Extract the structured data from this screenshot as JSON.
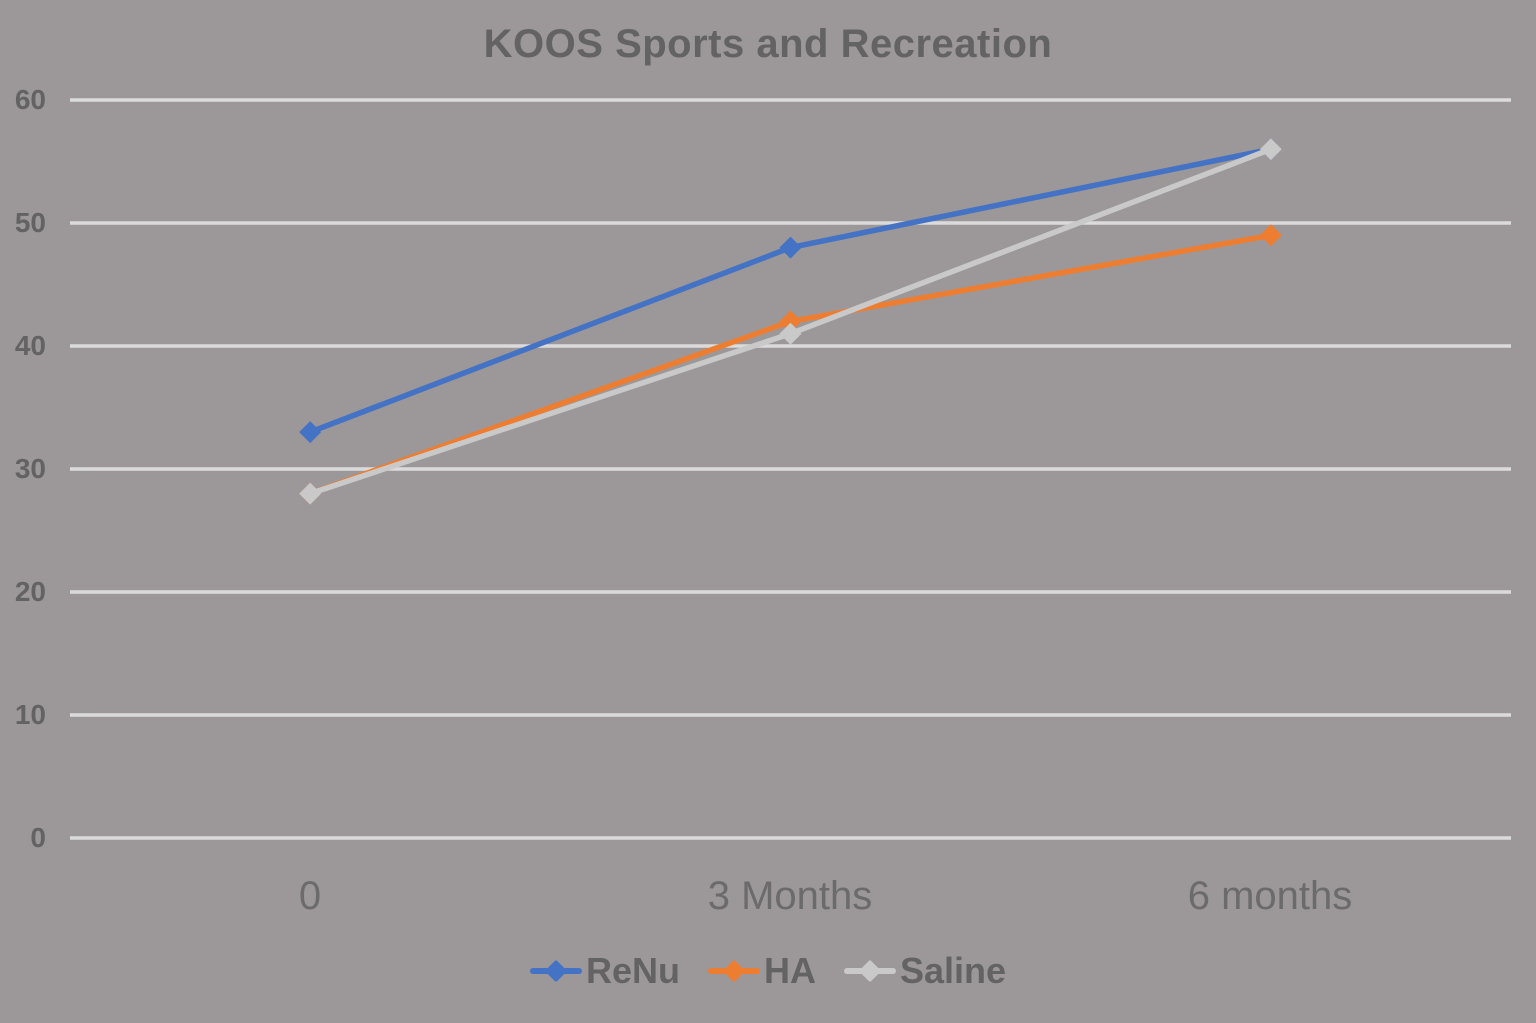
{
  "chart_data": {
    "type": "line",
    "title": "KOOS Sports and Recreation",
    "categories": [
      "0",
      "3 Months",
      "6 months"
    ],
    "series": [
      {
        "name": "ReNu",
        "color": "#4472C4",
        "values": [
          33,
          48,
          56
        ]
      },
      {
        "name": "HA",
        "color": "#ED7D31",
        "values": [
          28,
          42,
          49
        ]
      },
      {
        "name": "Saline",
        "color": "#C9C9C9",
        "values": [
          28,
          41,
          56
        ]
      }
    ],
    "xlabel": "",
    "ylabel": "",
    "ylim": [
      0,
      60
    ],
    "y_ticks": [
      60,
      50,
      40,
      30,
      20,
      10,
      0
    ],
    "grid": "horizontal",
    "legend_position": "bottom",
    "marker": "diamond"
  },
  "colors": {
    "background": "#9C9899",
    "gridline": "#DCDBDB",
    "title_text": "#636363",
    "axis_text": "#6b6b6b"
  }
}
